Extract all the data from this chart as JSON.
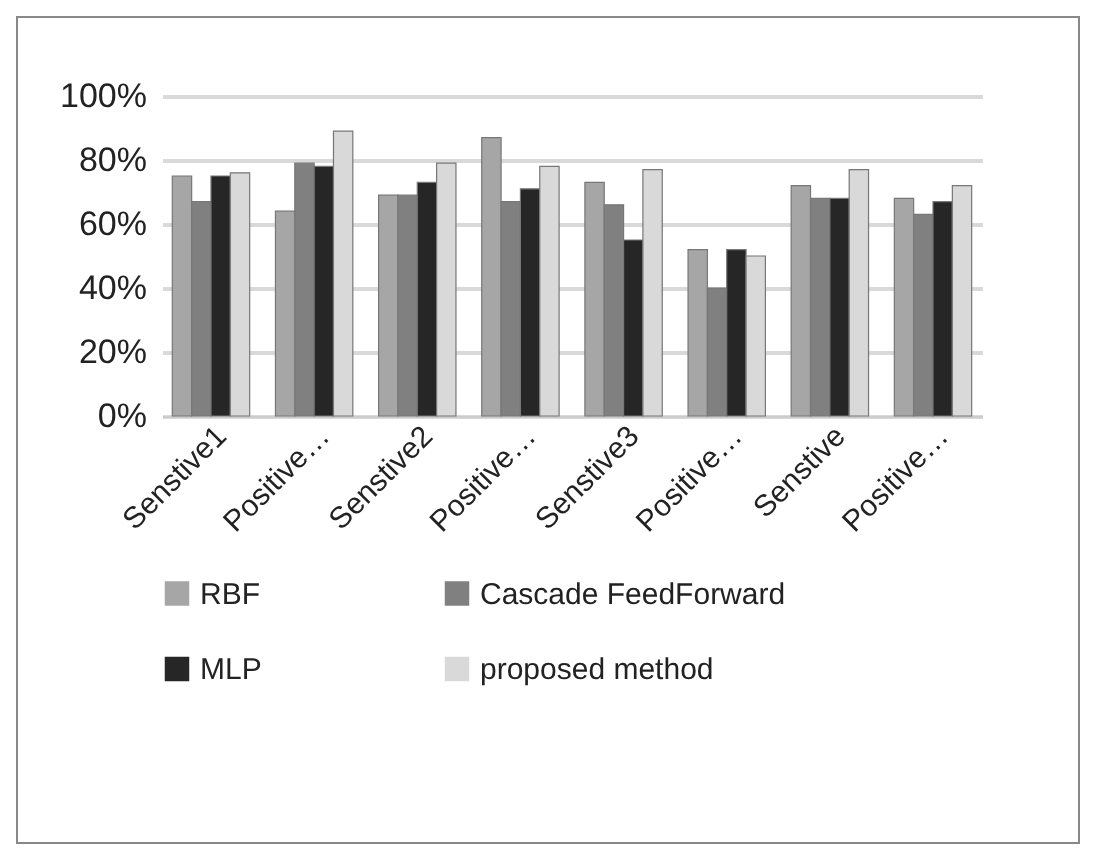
{
  "chart_data": {
    "type": "bar",
    "categories": [
      "Senstive1",
      "Positive…",
      "Senstive2",
      "Positive…",
      "Senstive3",
      "Positive…",
      "Senstive",
      "Positive…"
    ],
    "series": [
      {
        "name": "RBF",
        "color": "#a6a6a6",
        "values": [
          75,
          64,
          69,
          87,
          73,
          52,
          72,
          68
        ]
      },
      {
        "name": "Cascade FeedForward",
        "color": "#808080",
        "values": [
          67,
          79,
          69,
          67,
          66,
          40,
          68,
          63
        ]
      },
      {
        "name": "MLP",
        "color": "#262626",
        "values": [
          75,
          78,
          73,
          71,
          55,
          52,
          68,
          67
        ]
      },
      {
        "name": "proposed method",
        "color": "#d9d9d9",
        "values": [
          76,
          89,
          79,
          78,
          77,
          50,
          77,
          72
        ]
      }
    ],
    "ylim": [
      0,
      100
    ],
    "yticks": [
      {
        "value": 0,
        "label": "0%"
      },
      {
        "value": 20,
        "label": "20%"
      },
      {
        "value": 40,
        "label": "40%"
      },
      {
        "value": 60,
        "label": "60%"
      },
      {
        "value": 80,
        "label": "80%"
      },
      {
        "value": 100,
        "label": "100%"
      }
    ],
    "grid": "y",
    "legend": "bottom"
  }
}
